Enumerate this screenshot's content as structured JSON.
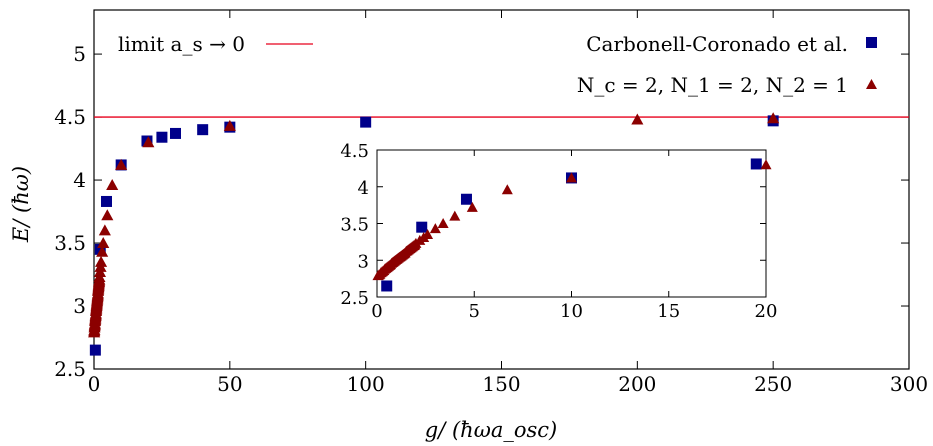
{
  "chart_data": {
    "type": "scatter",
    "xlabel": "g/ (ħωa_osc)",
    "ylabel": "E/ (ħω)",
    "xlim": [
      0,
      300
    ],
    "ylim": [
      2.5,
      5.35
    ],
    "x_ticks": [
      "0",
      "50",
      "100",
      "150",
      "200",
      "250",
      "300"
    ],
    "y_ticks": [
      "2.5",
      "3",
      "3.5",
      "4",
      "4.5",
      "5"
    ],
    "legend": {
      "placement": "top",
      "limit_label": "limit a_s → 0",
      "series1_label": "Carbonell-Coronado et al.",
      "series2_label": "N_c = 2, N_1 = 2, N_2 = 1"
    },
    "reference_line": {
      "y": 4.5,
      "color": "#e8001c"
    },
    "series": [
      {
        "name": "Carbonell-Coronado et al.",
        "marker": "square",
        "color": "#00008b",
        "x": [
          0.5,
          2.3,
          4.6,
          10,
          19.5,
          25,
          30,
          40,
          50,
          100,
          250
        ],
        "y": [
          2.65,
          3.45,
          3.83,
          4.12,
          4.31,
          4.34,
          4.37,
          4.4,
          4.42,
          4.46,
          4.47
        ]
      },
      {
        "name": "N_c = 2, N_1 = 2, N_2 = 1",
        "marker": "triangle",
        "color": "#8b0000",
        "x": [
          0.05,
          0.1,
          0.15,
          0.2,
          0.25,
          0.3,
          0.35,
          0.4,
          0.45,
          0.5,
          0.55,
          0.6,
          0.65,
          0.7,
          0.75,
          0.8,
          0.85,
          0.9,
          0.95,
          1.0,
          1.05,
          1.1,
          1.15,
          1.2,
          1.25,
          1.3,
          1.35,
          1.4,
          1.45,
          1.5,
          1.55,
          1.6,
          1.65,
          1.7,
          1.75,
          1.8,
          1.85,
          1.9,
          1.95,
          2.0,
          2.2,
          2.4,
          2.6,
          3.0,
          3.4,
          4.0,
          4.9,
          6.7,
          10,
          20,
          50,
          200,
          250
        ],
        "y": [
          2.79,
          2.8,
          2.81,
          2.83,
          2.84,
          2.85,
          2.86,
          2.88,
          2.89,
          2.9,
          2.91,
          2.92,
          2.93,
          2.94,
          2.96,
          2.97,
          2.98,
          2.99,
          3.0,
          3.01,
          3.02,
          3.03,
          3.04,
          3.05,
          3.06,
          3.07,
          3.08,
          3.09,
          3.1,
          3.12,
          3.13,
          3.14,
          3.15,
          3.16,
          3.17,
          3.18,
          3.19,
          3.2,
          3.21,
          3.23,
          3.27,
          3.31,
          3.35,
          3.43,
          3.5,
          3.6,
          3.72,
          3.96,
          4.12,
          4.3,
          4.43,
          4.48,
          4.49
        ]
      }
    ],
    "inset": {
      "xlim": [
        0,
        20
      ],
      "ylim": [
        2.5,
        4.5
      ],
      "x_ticks": [
        "0",
        "5",
        "10",
        "15",
        "20"
      ],
      "y_ticks": [
        "2.5",
        "3",
        "3.5",
        "4",
        "4.5"
      ]
    }
  }
}
